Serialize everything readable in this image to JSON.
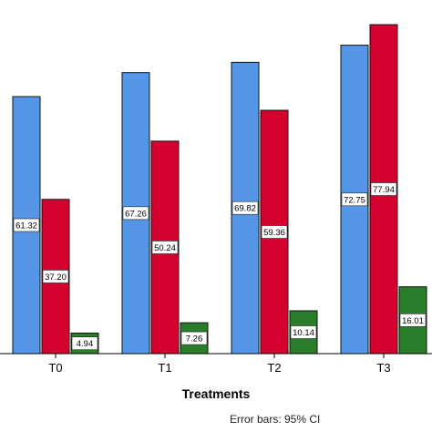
{
  "chart_data": {
    "type": "bar",
    "categories": [
      "T0",
      "T1",
      "T2",
      "T3"
    ],
    "series": [
      {
        "values": [
          61.32,
          67.26,
          69.82,
          72.75
        ],
        "bar_tops": [
          75.0,
          82.0,
          85.0,
          90.0
        ],
        "color": "#5596e6"
      },
      {
        "values": [
          37.2,
          50.24,
          59.36,
          77.94
        ],
        "bar_tops": [
          45.0,
          62.0,
          71.0,
          96.0
        ],
        "color": "#d4002e"
      },
      {
        "values": [
          4.94,
          7.26,
          10.14,
          16.01
        ],
        "bar_tops": [
          6.0,
          9.0,
          12.5,
          19.5
        ],
        "color": "#2a7d2a"
      }
    ],
    "data_labels": [
      [
        "61.32",
        "67.26",
        "69.82",
        "72.75"
      ],
      [
        "37.20",
        "50.24",
        "59.36",
        "77.94"
      ],
      [
        "4.94",
        "7.26",
        "10.14",
        "16.01"
      ]
    ],
    "xlabel": "Treatments",
    "ylabel": "",
    "ylim": [
      0,
      100
    ],
    "grid": false,
    "legend": "none"
  },
  "footnote": "Error bars: 95% CI"
}
